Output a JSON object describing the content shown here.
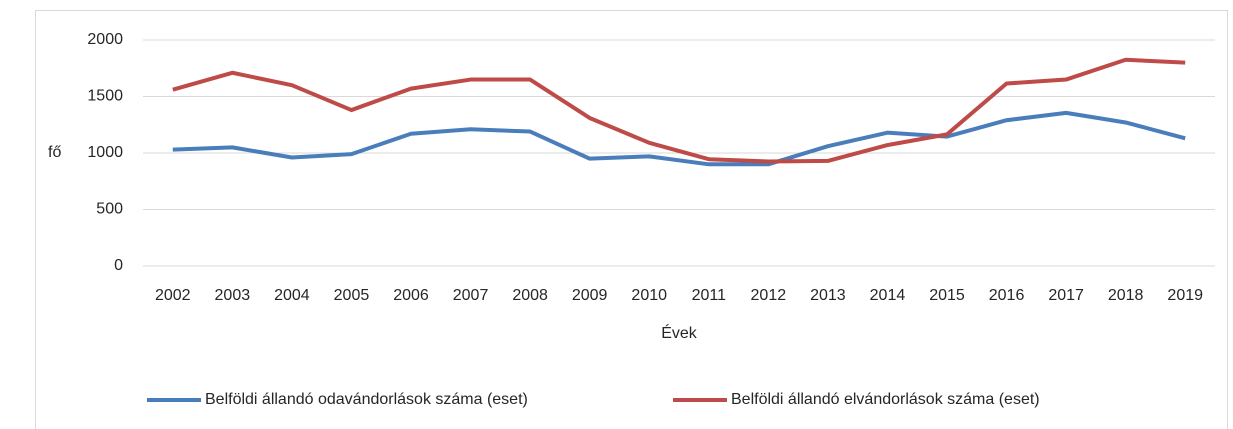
{
  "chart_data": {
    "type": "line",
    "x_label": "fő",
    "x_axis_title": "Évek",
    "categories": [
      "2002",
      "2003",
      "2004",
      "2005",
      "2006",
      "2007",
      "2008",
      "2009",
      "2010",
      "2011",
      "2012",
      "2013",
      "2014",
      "2015",
      "2016",
      "2017",
      "2018",
      "2019"
    ],
    "series": [
      {
        "name": "Belföldi állandó odavándorlások száma (eset)",
        "color": "#4a7ebb",
        "values": [
          1030,
          1050,
          960,
          990,
          1170,
          1210,
          1190,
          950,
          970,
          900,
          900,
          1060,
          1180,
          1145,
          1290,
          1355,
          1270,
          1130
        ]
      },
      {
        "name": "Belföldi állandó elvándorlások száma (eset)",
        "color": "#be4b48",
        "values": [
          1560,
          1710,
          1600,
          1380,
          1570,
          1650,
          1650,
          1310,
          1090,
          945,
          925,
          930,
          1070,
          1165,
          1615,
          1650,
          1825,
          1800
        ]
      }
    ],
    "ylim": [
      0,
      2000
    ],
    "yticks": [
      0,
      500,
      1000,
      1500,
      2000
    ],
    "grid": true,
    "legend": "bottom"
  }
}
